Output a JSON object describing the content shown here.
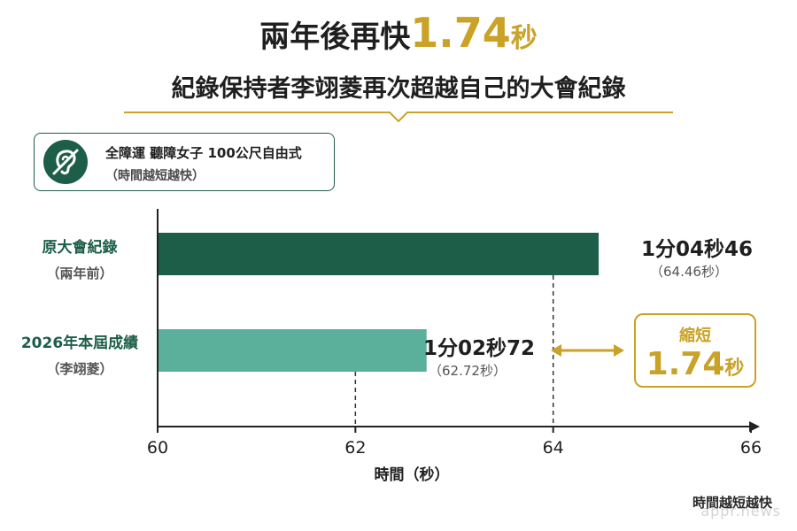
{
  "header": {
    "headline_prefix": "兩年後再快",
    "headline_number": "1.74",
    "headline_unit": "秒",
    "subheadline": "紀錄保持者李翊菱再次超越自己的大會紀錄"
  },
  "callout": {
    "icon": "ear-muted-icon",
    "line1": "全障運 聽障女子 100公尺自由式",
    "line2": "（時間越短越快）"
  },
  "rows": [
    {
      "label": "原大會紀錄",
      "sublabel": "（兩年前）",
      "time_text": "1分04秒46",
      "seconds_text": "（64.46秒）"
    },
    {
      "label": "2026年本屆成績",
      "sublabel": "（李翊菱）",
      "time_text": "1分02秒72",
      "seconds_text": "（62.72秒）"
    }
  ],
  "difference": {
    "label": "縮短",
    "number": "1.74",
    "unit": "秒"
  },
  "footer_note": "時間越短越快",
  "watermark": "appr.news",
  "colors": {
    "record_bar": "#1d5e49",
    "current_bar": "#5ab09a",
    "accent_gold": "#c9a227",
    "axis": "#222222"
  },
  "chart_data": {
    "type": "bar",
    "orientation": "horizontal",
    "categories": [
      "原大會紀錄",
      "2026年本屆成績"
    ],
    "values": [
      64.46,
      62.72
    ],
    "xlabel": "時間（秒）",
    "xlim": [
      60,
      66
    ],
    "xticks": [
      60,
      62,
      64,
      66
    ],
    "grid": false
  }
}
